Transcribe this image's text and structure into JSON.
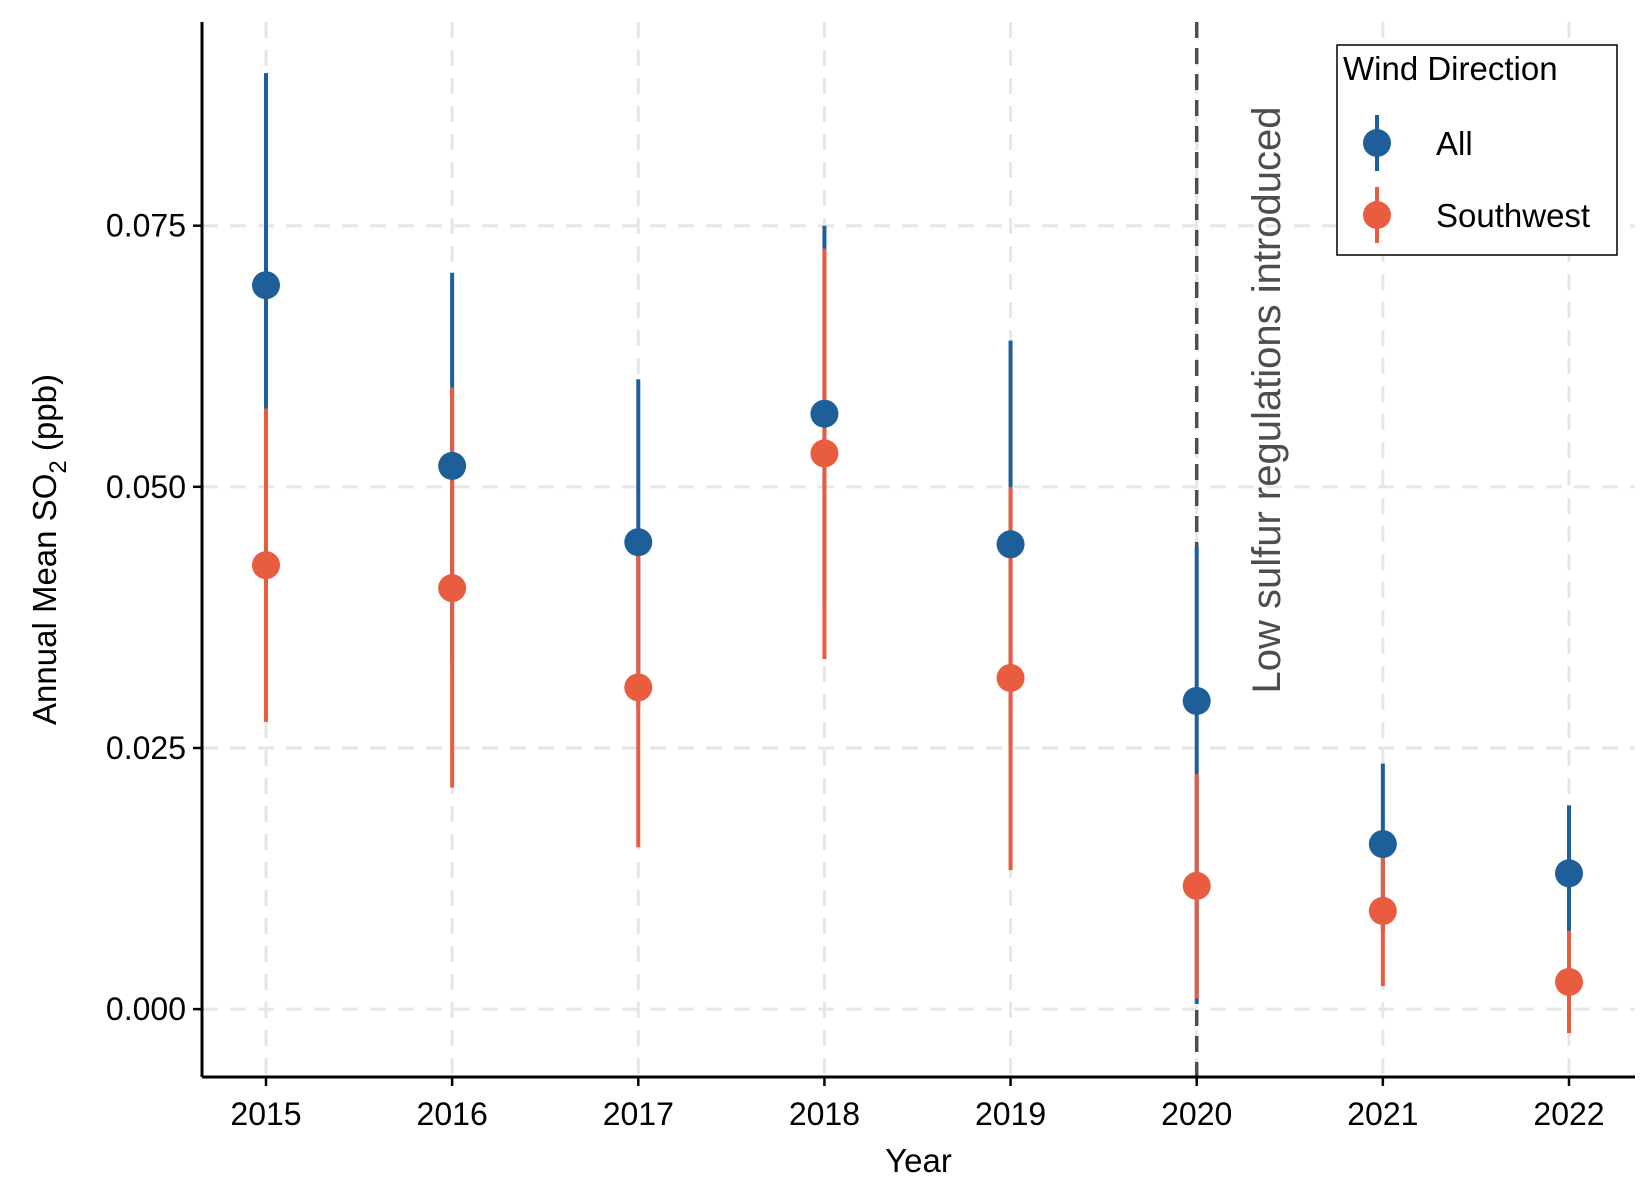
{
  "chart_data": {
    "type": "scatter",
    "xlabel": "Year",
    "ylabel": {
      "prefix": "Annual Mean SO",
      "subscript": "2",
      "suffix": " (ppb)"
    },
    "x": [
      2015,
      2016,
      2017,
      2018,
      2019,
      2020,
      2021,
      2022
    ],
    "x_tick_labels": [
      "2015",
      "2016",
      "2017",
      "2018",
      "2019",
      "2020",
      "2021",
      "2022"
    ],
    "y_ticks": [
      0.0,
      0.025,
      0.05,
      0.075
    ],
    "y_tick_labels": [
      "0.000",
      "0.025",
      "0.050",
      "0.075"
    ],
    "ylim": [
      -0.0065,
      0.0945
    ],
    "grid": true,
    "legend": {
      "title": "Wind Direction",
      "placement": "top-right"
    },
    "series": [
      {
        "name": "All",
        "color": "#1f5f99",
        "values": [
          0.0693,
          0.052,
          0.0447,
          0.057,
          0.0445,
          0.0295,
          0.0158,
          0.013
        ],
        "lower": [
          0.049,
          0.0335,
          0.029,
          0.039,
          0.0252,
          0.0005,
          0.0075,
          0.005
        ],
        "upper": [
          0.0896,
          0.0705,
          0.0603,
          0.075,
          0.064,
          0.0443,
          0.0235,
          0.0195
        ]
      },
      {
        "name": "Southwest",
        "color": "#e85c3f",
        "values": [
          0.0425,
          0.0403,
          0.0308,
          0.0532,
          0.0317,
          0.0118,
          0.0094,
          0.0026
        ],
        "lower": [
          0.0275,
          0.0212,
          0.0155,
          0.0335,
          0.0133,
          0.001,
          0.0022,
          -0.0023
        ],
        "upper": [
          0.0575,
          0.0595,
          0.0435,
          0.0728,
          0.05,
          0.0225,
          0.0145,
          0.0075
        ]
      }
    ],
    "vline": {
      "x": 2020,
      "label": "Low sulfur regulations introduced",
      "color": "#4d4d4d"
    }
  }
}
